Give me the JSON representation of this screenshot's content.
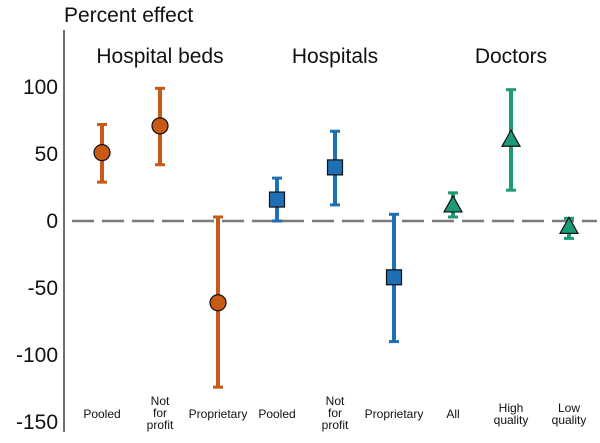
{
  "chart_data": {
    "type": "scatter",
    "title": "",
    "ylabel": "Percent effect",
    "xlabel": "",
    "ylim": [
      -150,
      140
    ],
    "yticks": [
      100,
      50,
      0,
      -50,
      -100,
      -150
    ],
    "reference_line": 0,
    "grid": false,
    "groups": [
      {
        "name": "Hospital beds",
        "color": "#c85a17",
        "marker": "circle",
        "items": [
          {
            "label": [
              "Pooled"
            ],
            "value": 51,
            "lower": 29,
            "upper": 72
          },
          {
            "label": [
              "Not",
              "for",
              "profit"
            ],
            "value": 71,
            "lower": 42,
            "upper": 99
          },
          {
            "label": [
              "Proprietary"
            ],
            "value": -61,
            "lower": -124,
            "upper": 3
          }
        ]
      },
      {
        "name": "Hospitals",
        "color": "#1f6fb4",
        "marker": "square",
        "items": [
          {
            "label": [
              "Pooled"
            ],
            "value": 16,
            "lower": 0,
            "upper": 32
          },
          {
            "label": [
              "Not",
              "for",
              "profit"
            ],
            "value": 40,
            "lower": 12,
            "upper": 67
          },
          {
            "label": [
              "Proprietary"
            ],
            "value": -42,
            "lower": -90,
            "upper": 5
          }
        ]
      },
      {
        "name": "Doctors",
        "color": "#1d9a77",
        "marker": "triangle",
        "items": [
          {
            "label": [
              "All"
            ],
            "value": 12,
            "lower": 3,
            "upper": 21
          },
          {
            "label": [
              "High",
              "quality"
            ],
            "value": 61,
            "lower": 23,
            "upper": 98
          },
          {
            "label": [
              "Low",
              "quality"
            ],
            "value": -4,
            "lower": -13,
            "upper": 2
          }
        ]
      }
    ]
  }
}
